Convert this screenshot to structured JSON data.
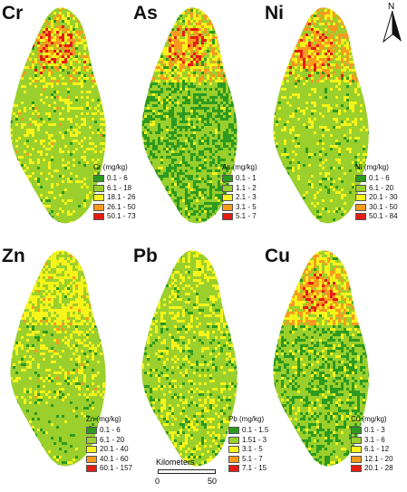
{
  "north": {
    "label": "N"
  },
  "scale": {
    "title": "Kilometers",
    "start": "0",
    "end": "50"
  },
  "colors": {
    "c1": "#2d9a1f",
    "c2": "#9bcf2c",
    "c3": "#f6f41a",
    "c4": "#f79a1e",
    "c5": "#e51b12"
  },
  "panels": [
    {
      "id": "cr",
      "title": "Cr",
      "legend_title": "Cr (mg/kg)",
      "classes": [
        "0.1 - 6",
        "6.1 - 18",
        "18.1 - 26",
        "26.1 - 50",
        "50.1 - 73"
      ]
    },
    {
      "id": "as",
      "title": "As",
      "legend_title": "As (mg/kg)",
      "classes": [
        "0.1 - 1",
        "1.1 - 2",
        "2.1 - 3",
        "3.1 - 5",
        "5.1 - 7"
      ]
    },
    {
      "id": "ni",
      "title": "Ni",
      "legend_title": "Ni (mg/kg)",
      "classes": [
        "0.1 - 6",
        "6.1 - 20",
        "20.1 - 30",
        "30.1 - 50",
        "50.1 - 84"
      ]
    },
    {
      "id": "zn",
      "title": "Zn",
      "legend_title": "Zn (mg/kg)",
      "classes": [
        "0.1 - 6",
        "6.1 - 20",
        "20.1 - 40",
        "40.1 - 60",
        "60.1 - 157"
      ]
    },
    {
      "id": "pb",
      "title": "Pb",
      "legend_title": "Pb (mg/kg)",
      "classes": [
        "0.1 - 1.5",
        "1.51 - 3",
        "3.1 - 5",
        "5.1 - 7",
        "7.1 - 15"
      ]
    },
    {
      "id": "cu",
      "title": "Cu",
      "legend_title": "Cu (mg/kg)",
      "classes": [
        "0.1 - 3",
        "3.1 - 6",
        "6.1 - 12",
        "12.1 - 20",
        "20.1 - 28"
      ]
    }
  ]
}
